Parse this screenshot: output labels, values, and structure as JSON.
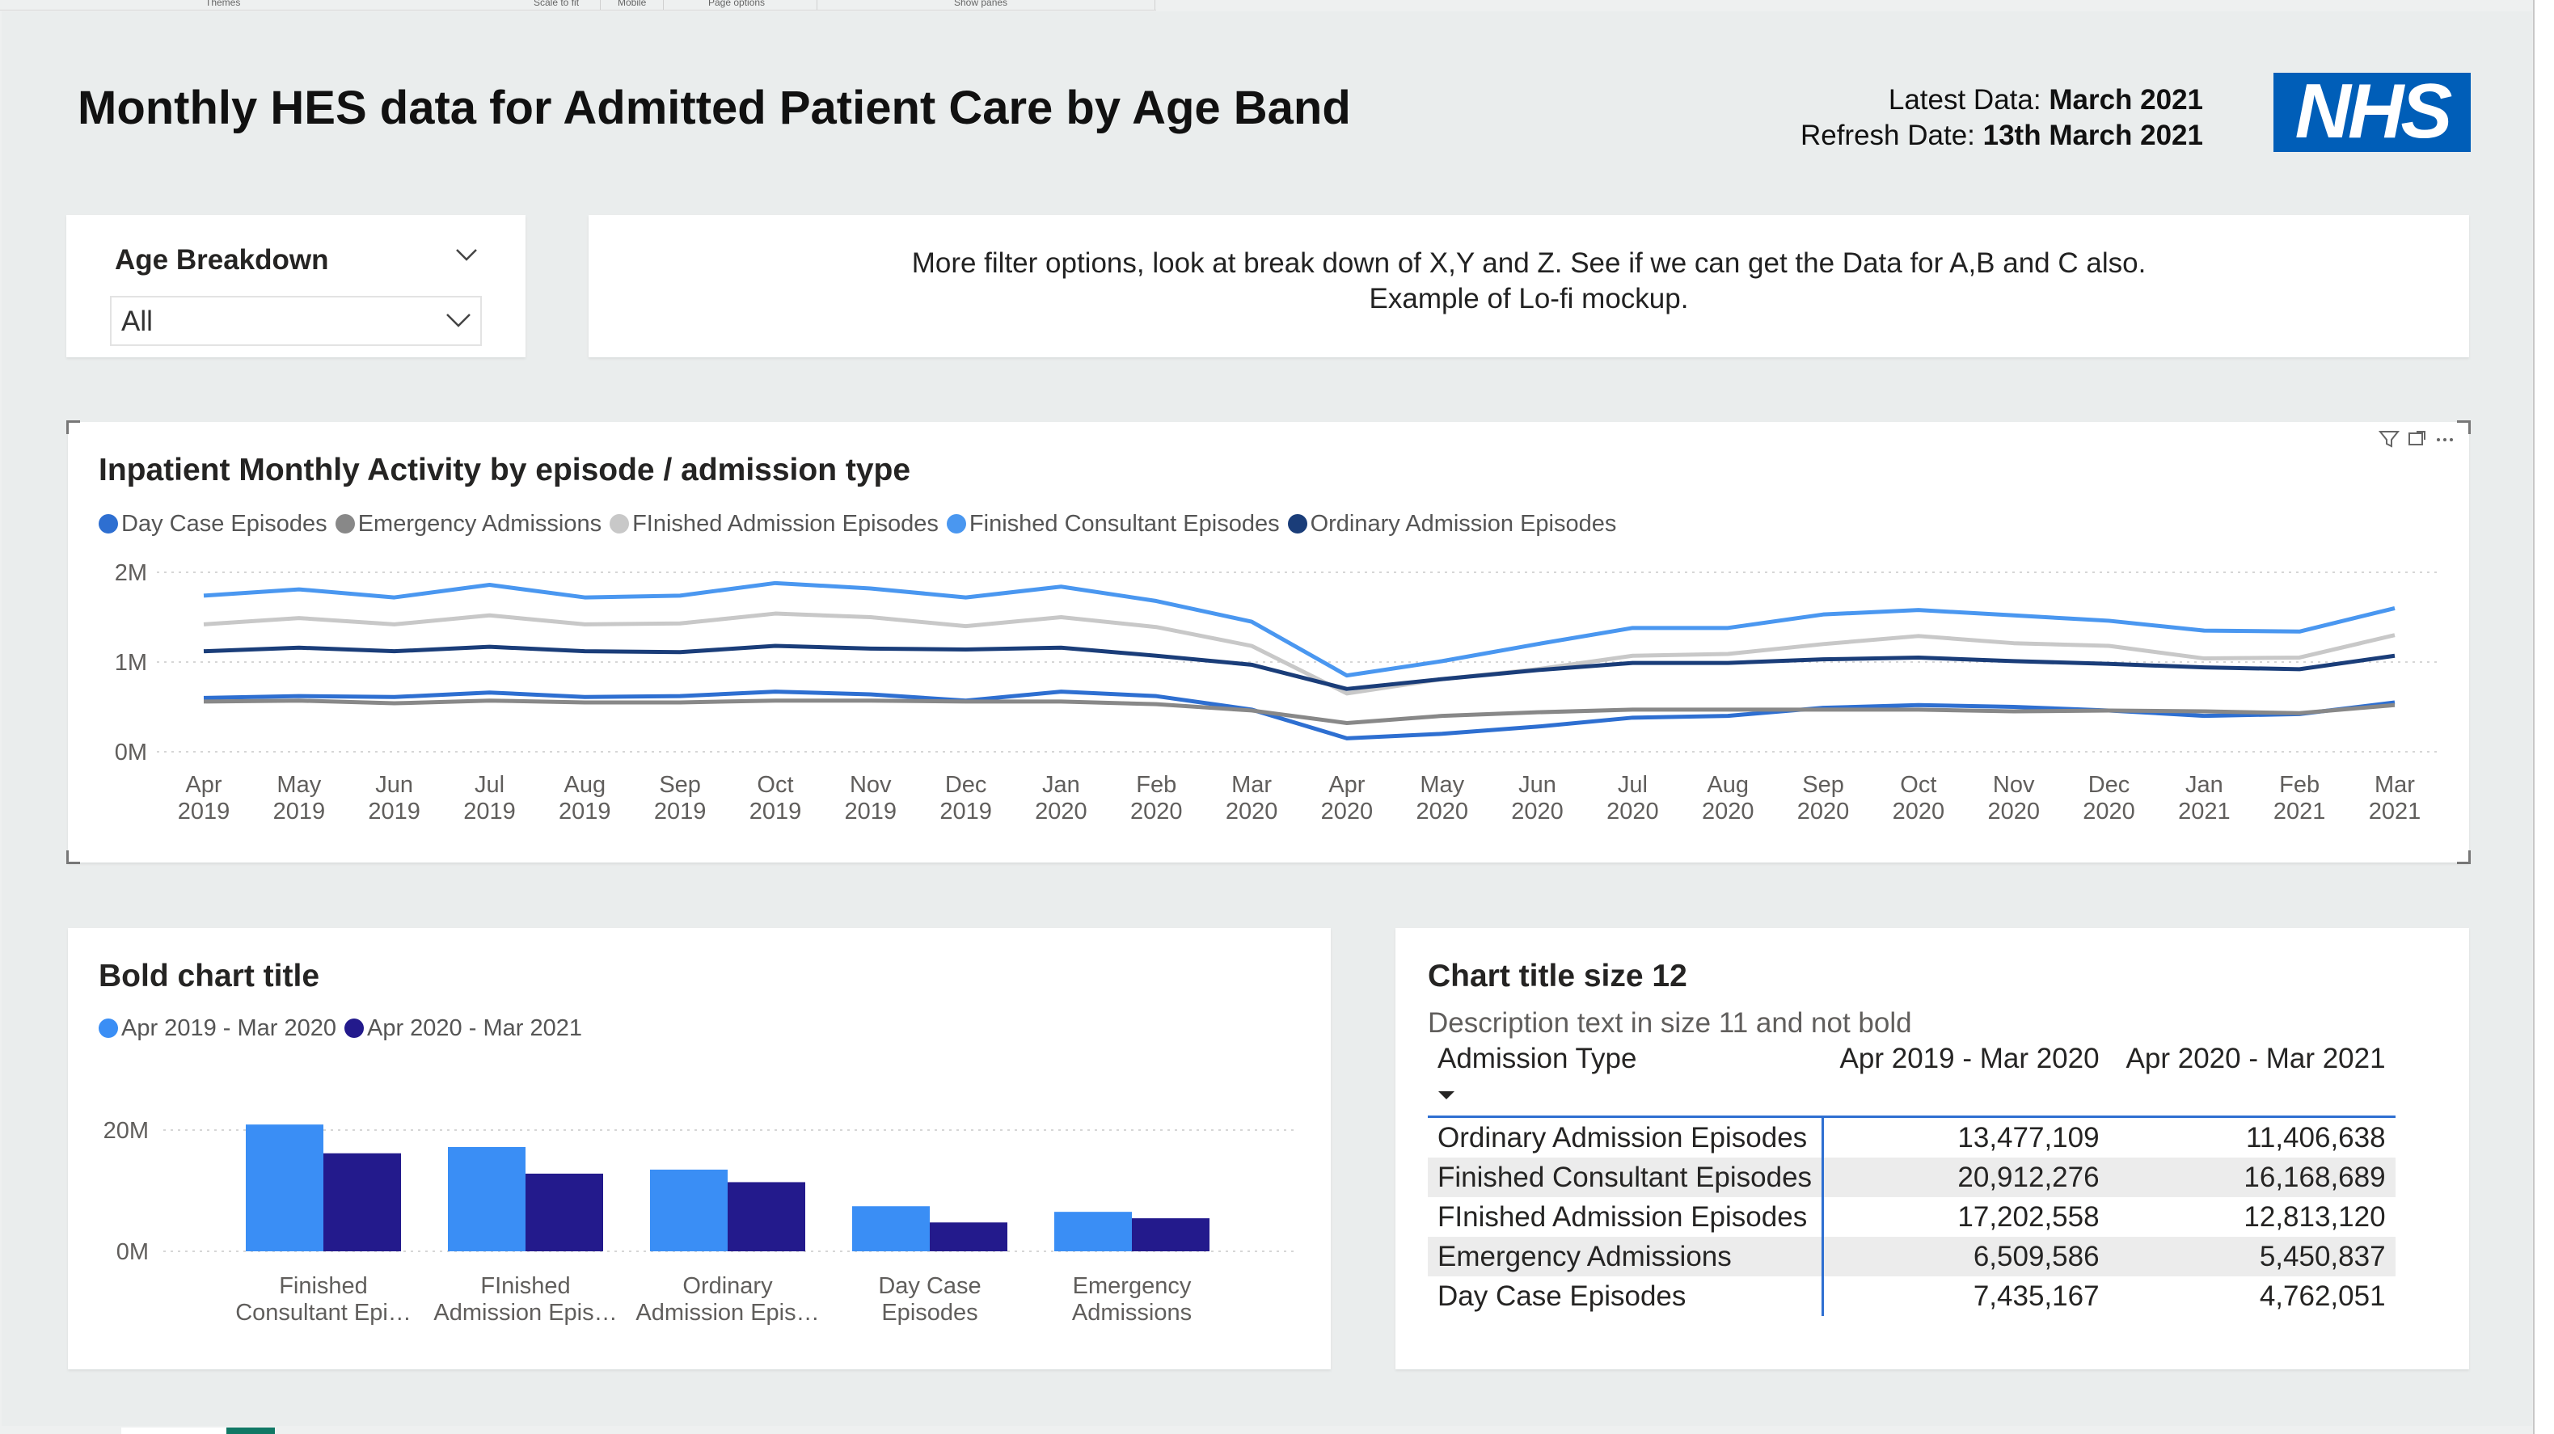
{
  "ribbon": {
    "labels": [
      "Themes",
      "Scale to fit",
      "Mobile",
      "Page options",
      "Show panes"
    ]
  },
  "header": {
    "title": "Monthly HES data for Admitted Patient Care by Age Band",
    "latest_label": "Latest Data:",
    "latest_value": "March 2021",
    "refresh_label": "Refresh Date:",
    "refresh_value": "13th March 2021",
    "logo_text": "NHS",
    "logo_color": "#005eb8"
  },
  "slicer": {
    "title": "Age Breakdown",
    "value": "All"
  },
  "note": {
    "line1": "More filter options, look at break down of X,Y and Z. See if we can get the Data for A,B and C also.",
    "line2": "Example of Lo-fi mockup."
  },
  "line_card": {
    "icons": [
      "filter-icon",
      "focus-mode-icon",
      "more-options-icon"
    ]
  },
  "bar_card": {},
  "table_card": {
    "title": "Chart title size 12",
    "description": "Description text in size 11 and not bold",
    "columns": [
      "Admission Type",
      "Apr 2019 - Mar 2020",
      "Apr 2020 - Mar 2021"
    ],
    "rows": [
      [
        "Ordinary Admission Episodes",
        "13,477,109",
        "11,406,638"
      ],
      [
        "Finished Consultant Episodes",
        "20,912,276",
        "16,168,689"
      ],
      [
        "FInished Admission Episodes",
        "17,202,558",
        "12,813,120"
      ],
      [
        "Emergency Admissions",
        "6,509,586",
        "5,450,837"
      ],
      [
        "Day Case Episodes",
        "7,435,167",
        "4,762,051"
      ]
    ]
  },
  "chart_data": [
    {
      "type": "line",
      "title": "Inpatient Monthly Activity by episode / admission type",
      "xlabel": "",
      "ylabel": "",
      "ylim": [
        0,
        2000000
      ],
      "yticks": [
        "0M",
        "1M",
        "2M"
      ],
      "legend": "top-left",
      "grid": true,
      "categories": [
        "Apr 2019",
        "May 2019",
        "Jun 2019",
        "Jul 2019",
        "Aug 2019",
        "Sep 2019",
        "Oct 2019",
        "Nov 2019",
        "Dec 2019",
        "Jan 2020",
        "Feb 2020",
        "Mar 2020",
        "Apr 2020",
        "May 2020",
        "Jun 2020",
        "Jul 2020",
        "Aug 2020",
        "Sep 2020",
        "Oct 2020",
        "Nov 2020",
        "Dec 2020",
        "Jan 2021",
        "Feb 2021",
        "Mar 2021"
      ],
      "series": [
        {
          "name": "Day Case Episodes",
          "color": "#2e6fd1",
          "values": [
            600000,
            620000,
            610000,
            660000,
            610000,
            620000,
            670000,
            640000,
            570000,
            670000,
            620000,
            470000,
            150000,
            200000,
            280000,
            380000,
            400000,
            490000,
            520000,
            500000,
            460000,
            400000,
            420000,
            550000
          ]
        },
        {
          "name": "Emergency Admissions",
          "color": "#888888",
          "values": [
            560000,
            570000,
            540000,
            570000,
            550000,
            550000,
            570000,
            570000,
            560000,
            560000,
            530000,
            460000,
            320000,
            400000,
            440000,
            470000,
            470000,
            470000,
            470000,
            450000,
            460000,
            450000,
            430000,
            520000
          ]
        },
        {
          "name": "FInished Admission Episodes",
          "color": "#c8c8c8",
          "values": [
            1420000,
            1490000,
            1420000,
            1520000,
            1420000,
            1430000,
            1540000,
            1500000,
            1400000,
            1500000,
            1390000,
            1180000,
            650000,
            810000,
            920000,
            1070000,
            1090000,
            1200000,
            1290000,
            1210000,
            1180000,
            1040000,
            1050000,
            1300000
          ]
        },
        {
          "name": "Finished Consultant Episodes",
          "color": "#4a97f0",
          "values": [
            1740000,
            1810000,
            1720000,
            1860000,
            1720000,
            1740000,
            1880000,
            1820000,
            1720000,
            1840000,
            1680000,
            1450000,
            850000,
            1010000,
            1200000,
            1380000,
            1380000,
            1530000,
            1580000,
            1520000,
            1460000,
            1350000,
            1340000,
            1600000
          ]
        },
        {
          "name": "Ordinary Admission Episodes",
          "color": "#1a3d79",
          "values": [
            1120000,
            1160000,
            1120000,
            1170000,
            1120000,
            1110000,
            1180000,
            1150000,
            1140000,
            1160000,
            1070000,
            970000,
            700000,
            810000,
            910000,
            990000,
            990000,
            1030000,
            1050000,
            1010000,
            980000,
            940000,
            920000,
            1070000
          ]
        }
      ]
    },
    {
      "type": "bar",
      "title": "Bold chart title",
      "xlabel": "",
      "ylabel": "",
      "ylim": [
        0,
        24000000
      ],
      "yticks": [
        "0M",
        "20M"
      ],
      "legend": "top-left",
      "grid": true,
      "categories": [
        "Finished Consultant Epi…",
        "FInished Admission Epis…",
        "Ordinary Admission Epis…",
        "Day Case Episodes",
        "Emergency Admissions"
      ],
      "category_lines": [
        [
          "Finished",
          "Consultant Epi…"
        ],
        [
          "FInished",
          "Admission Epis…"
        ],
        [
          "Ordinary",
          "Admission Epis…"
        ],
        [
          "Day Case",
          "Episodes"
        ],
        [
          "Emergency",
          "Admissions"
        ]
      ],
      "series": [
        {
          "name": "Apr 2019 - Mar 2020",
          "color": "#3a8ef5",
          "values": [
            20912276,
            17202558,
            13477109,
            7435167,
            6509586
          ]
        },
        {
          "name": "Apr 2020 - Mar 2021",
          "color": "#231a8c",
          "values": [
            16168689,
            12813120,
            11406638,
            4762051,
            5450837
          ]
        }
      ]
    }
  ]
}
